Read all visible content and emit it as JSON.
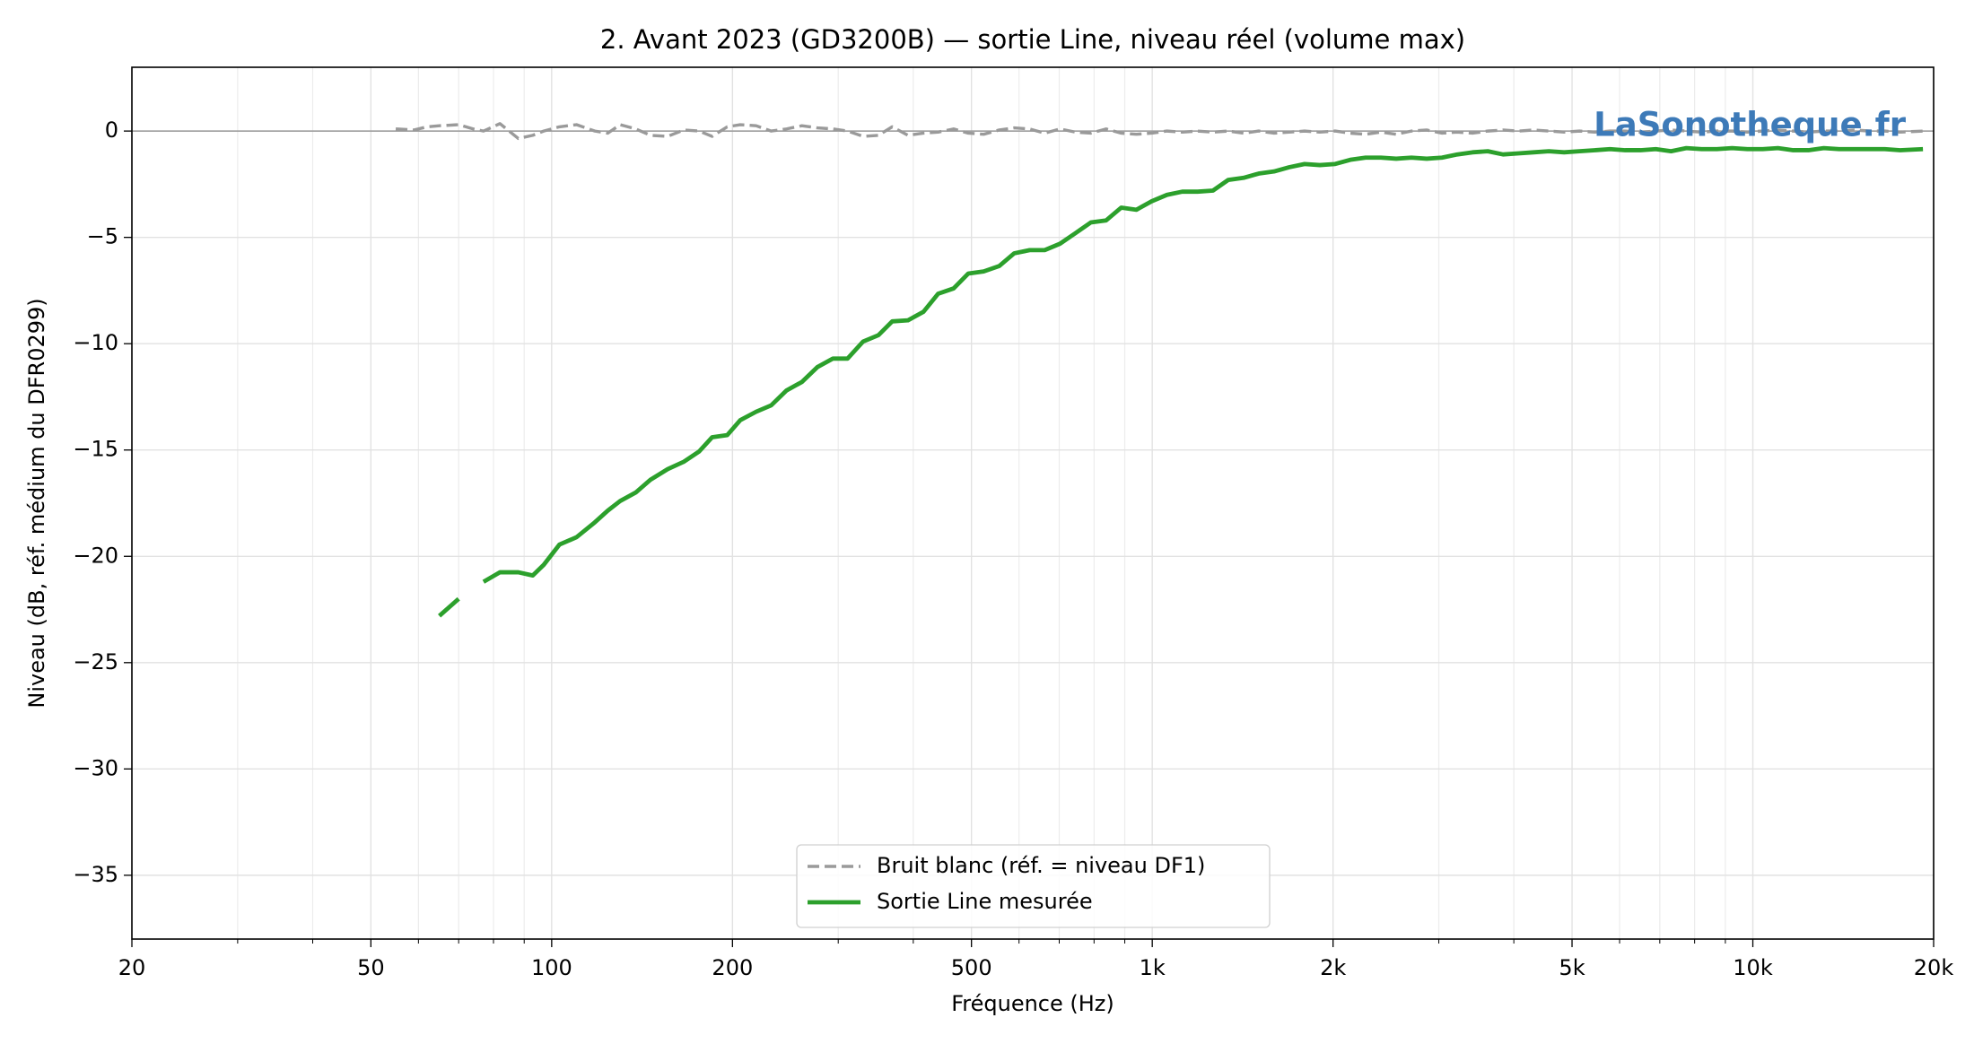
{
  "chart_data": {
    "type": "line",
    "title": "2. Avant 2023 (GD3200B)  —  sortie Line, niveau réel (volume max)",
    "xlabel": "Fréquence (Hz)",
    "ylabel": "Niveau (dB, réf. médium du DFR0299)",
    "watermark": "LaSonotheque.fr",
    "xscale": "log",
    "grid": true,
    "legend": "lower center",
    "hline": 0,
    "xlim": [
      20,
      20000
    ],
    "ylim": [
      -38,
      3
    ],
    "xticks": [
      20,
      50,
      100,
      200,
      500,
      {
        "value": 1000,
        "label": "1k"
      },
      {
        "value": 2000,
        "label": "2k"
      },
      {
        "value": 5000,
        "label": "5k"
      },
      {
        "value": 10000,
        "label": "10k"
      },
      {
        "value": 20000,
        "label": "20k"
      }
    ],
    "xminorticks": [
      30,
      40,
      60,
      70,
      80,
      90,
      300,
      400,
      600,
      700,
      800,
      900,
      3000,
      4000,
      6000,
      7000,
      8000,
      9000
    ],
    "yticks": [
      0,
      {
        "value": -5,
        "label": "−5"
      },
      {
        "value": -10,
        "label": "−10"
      },
      {
        "value": -15,
        "label": "−15"
      },
      {
        "value": -20,
        "label": "−20"
      },
      {
        "value": -25,
        "label": "−25"
      },
      {
        "value": -30,
        "label": "−30"
      },
      {
        "value": -35,
        "label": "−35"
      }
    ],
    "x": [
      55,
      59,
      62,
      65,
      70,
      74,
      77,
      82,
      88,
      93,
      97,
      103,
      110,
      118,
      124,
      130,
      138,
      146,
      156,
      166,
      176,
      185,
      196,
      206,
      219,
      232,
      246,
      261,
      277,
      294,
      311,
      330,
      350,
      369,
      392,
      416,
      440,
      467,
      494,
      524,
      556,
      589,
      625,
      662,
      702,
      745,
      790,
      838,
      888,
      941,
      998,
      1058,
      1122,
      1190,
      1262,
      1338,
      1419,
      1504,
      1595,
      1691,
      1793,
      1901,
      2016,
      2137,
      2266,
      2403,
      2548,
      2701,
      2864,
      3037,
      3220,
      3414,
      3620,
      3838,
      4070,
      4315,
      4575,
      4851,
      5144,
      5454,
      5783,
      6131,
      6501,
      6893,
      7309,
      7749,
      8217,
      8712,
      9237,
      9794,
      10385,
      11011,
      11675,
      12379,
      13125,
      13917,
      14756,
      15646,
      16589,
      17590,
      19198
    ],
    "series": [
      {
        "name": "Bruit blanc (réf. = niveau DF1)",
        "color": "#9a9a9a",
        "dashed": true,
        "values": [
          0.1,
          0.05,
          0.2,
          0.25,
          0.3,
          0.1,
          0.0,
          0.35,
          -0.35,
          -0.2,
          0.0,
          0.2,
          0.3,
          0.0,
          -0.1,
          0.3,
          0.1,
          -0.2,
          -0.25,
          0.05,
          0.0,
          -0.25,
          0.2,
          0.3,
          0.25,
          0.0,
          0.1,
          0.25,
          0.15,
          0.1,
          0.0,
          -0.25,
          -0.2,
          0.2,
          -0.2,
          -0.1,
          -0.05,
          0.1,
          -0.1,
          -0.15,
          0.05,
          0.15,
          0.1,
          -0.1,
          0.1,
          -0.05,
          -0.1,
          0.1,
          -0.1,
          -0.15,
          -0.1,
          0.0,
          -0.05,
          0.0,
          -0.05,
          0.0,
          -0.1,
          0.0,
          -0.1,
          -0.05,
          0.0,
          -0.05,
          0.0,
          -0.1,
          -0.15,
          -0.05,
          -0.15,
          0.0,
          0.05,
          -0.1,
          -0.05,
          -0.1,
          0.0,
          0.05,
          0.0,
          0.05,
          0.0,
          -0.05,
          0.0,
          -0.05,
          0.0,
          0.0,
          -0.05,
          0.0,
          0.05,
          0.0,
          -0.05,
          0.0,
          0.0,
          -0.05,
          0.0,
          0.05,
          0.0,
          -0.05,
          0.0,
          0.0,
          0.05,
          0.0,
          0.0,
          -0.05,
          0.0
        ]
      },
      {
        "name": "Sortie Line mesurée",
        "color": "#2ca02c",
        "dashed": false,
        "values": [
          null,
          null,
          null,
          -22.8,
          -22.0,
          null,
          -21.2,
          -20.75,
          -20.75,
          -20.9,
          -20.4,
          -19.45,
          -19.1,
          -18.4,
          -17.85,
          -17.4,
          -17.0,
          -16.4,
          -15.9,
          -15.55,
          -15.07,
          -14.4,
          -14.3,
          -13.6,
          -13.2,
          -12.9,
          -12.2,
          -11.8,
          -11.1,
          -10.7,
          -10.7,
          -9.9,
          -9.6,
          -8.95,
          -8.9,
          -8.5,
          -7.65,
          -7.4,
          -6.7,
          -6.6,
          -6.35,
          -5.75,
          -5.6,
          -5.6,
          -5.3,
          -4.8,
          -4.3,
          -4.2,
          -3.6,
          -3.7,
          -3.3,
          -3.0,
          -2.85,
          -2.85,
          -2.8,
          -2.3,
          -2.2,
          -2.0,
          -1.9,
          -1.7,
          -1.55,
          -1.6,
          -1.55,
          -1.35,
          -1.25,
          -1.25,
          -1.3,
          -1.25,
          -1.3,
          -1.25,
          -1.1,
          -1.0,
          -0.95,
          -1.1,
          -1.05,
          -1.0,
          -0.95,
          -1.0,
          -0.95,
          -0.9,
          -0.85,
          -0.9,
          -0.9,
          -0.85,
          -0.95,
          -0.8,
          -0.85,
          -0.85,
          -0.8,
          -0.85,
          -0.85,
          -0.8,
          -0.9,
          -0.9,
          -0.8,
          -0.85,
          -0.85,
          -0.85,
          -0.85,
          -0.9,
          -0.85
        ]
      }
    ]
  }
}
